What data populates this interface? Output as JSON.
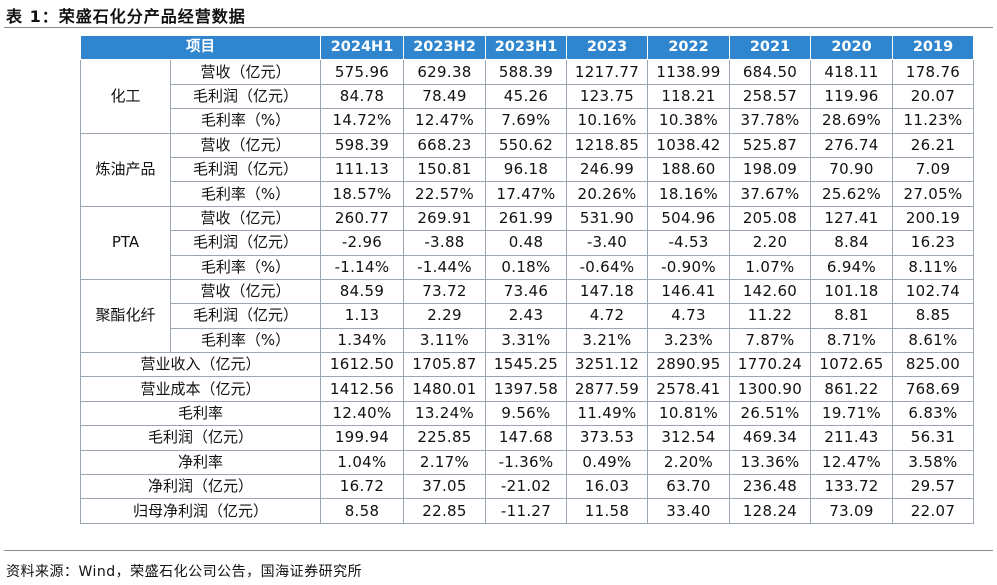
{
  "title": "表 1：荣盛石化分产品经营数据",
  "source": "资料来源：Wind，荣盛石化公司公告，国海证券研究所",
  "header": [
    "项目",
    "2024H1",
    "2023H2",
    "2023H1",
    "2023",
    "2022",
    "2021",
    "2020",
    "2019"
  ],
  "sections": [
    {
      "name": "化工",
      "rows": [
        {
          "metric": "营收（亿元）",
          "values": [
            "575.96",
            "629.38",
            "588.39",
            "1217.77",
            "1138.99",
            "684.50",
            "418.11",
            "178.76"
          ]
        },
        {
          "metric": "毛利润（亿元）",
          "values": [
            "84.78",
            "78.49",
            "45.26",
            "123.75",
            "118.21",
            "258.57",
            "119.96",
            "20.07"
          ]
        },
        {
          "metric": "毛利率（%）",
          "values": [
            "14.72%",
            "12.47%",
            "7.69%",
            "10.16%",
            "10.38%",
            "37.78%",
            "28.69%",
            "11.23%"
          ]
        }
      ]
    },
    {
      "name": "炼油产品",
      "rows": [
        {
          "metric": "营收（亿元）",
          "values": [
            "598.39",
            "668.23",
            "550.62",
            "1218.85",
            "1038.42",
            "525.87",
            "276.74",
            "26.21"
          ]
        },
        {
          "metric": "毛利润（亿元）",
          "values": [
            "111.13",
            "150.81",
            "96.18",
            "246.99",
            "188.60",
            "198.09",
            "70.90",
            "7.09"
          ]
        },
        {
          "metric": "毛利率（%）",
          "values": [
            "18.57%",
            "22.57%",
            "17.47%",
            "20.26%",
            "18.16%",
            "37.67%",
            "25.62%",
            "27.05%"
          ]
        }
      ]
    },
    {
      "name": "PTA",
      "rows": [
        {
          "metric": "营收（亿元）",
          "values": [
            "260.77",
            "269.91",
            "261.99",
            "531.90",
            "504.96",
            "205.08",
            "127.41",
            "200.19"
          ]
        },
        {
          "metric": "毛利润（亿元）",
          "values": [
            "-2.96",
            "-3.88",
            "0.48",
            "-3.40",
            "-4.53",
            "2.20",
            "8.84",
            "16.23"
          ]
        },
        {
          "metric": "毛利率（%）",
          "values": [
            "-1.14%",
            "-1.44%",
            "0.18%",
            "-0.64%",
            "-0.90%",
            "1.07%",
            "6.94%",
            "8.11%"
          ]
        }
      ]
    },
    {
      "name": "聚酯化纤",
      "rows": [
        {
          "metric": "营收（亿元）",
          "values": [
            "84.59",
            "73.72",
            "73.46",
            "147.18",
            "146.41",
            "142.60",
            "101.18",
            "102.74"
          ]
        },
        {
          "metric": "毛利润（亿元）",
          "values": [
            "1.13",
            "2.29",
            "2.43",
            "4.72",
            "4.73",
            "11.22",
            "8.81",
            "8.85"
          ]
        },
        {
          "metric": "毛利率（%）",
          "values": [
            "1.34%",
            "3.11%",
            "3.31%",
            "3.21%",
            "3.23%",
            "7.87%",
            "8.71%",
            "8.61%"
          ]
        }
      ]
    }
  ],
  "summary": [
    {
      "label": "营业收入（亿元）",
      "values": [
        "1612.50",
        "1705.87",
        "1545.25",
        "3251.12",
        "2890.95",
        "1770.24",
        "1072.65",
        "825.00"
      ]
    },
    {
      "label": "营业成本（亿元）",
      "values": [
        "1412.56",
        "1480.01",
        "1397.58",
        "2877.59",
        "2578.41",
        "1300.90",
        "861.22",
        "768.69"
      ]
    },
    {
      "label": "毛利率",
      "values": [
        "12.40%",
        "13.24%",
        "9.56%",
        "11.49%",
        "10.81%",
        "26.51%",
        "19.71%",
        "6.83%"
      ]
    },
    {
      "label": "毛利润（亿元）",
      "values": [
        "199.94",
        "225.85",
        "147.68",
        "373.53",
        "312.54",
        "469.34",
        "211.43",
        "56.31"
      ]
    },
    {
      "label": "净利率",
      "values": [
        "1.04%",
        "2.17%",
        "-1.36%",
        "0.49%",
        "2.20%",
        "13.36%",
        "12.47%",
        "3.58%"
      ]
    },
    {
      "label": "净利润（亿元）",
      "values": [
        "16.72",
        "37.05",
        "-21.02",
        "16.03",
        "63.70",
        "236.48",
        "133.72",
        "29.57"
      ]
    },
    {
      "label": "归母净利润（亿元）",
      "values": [
        "8.58",
        "22.85",
        "-11.27",
        "11.58",
        "33.40",
        "128.24",
        "73.09",
        "22.07"
      ]
    }
  ]
}
